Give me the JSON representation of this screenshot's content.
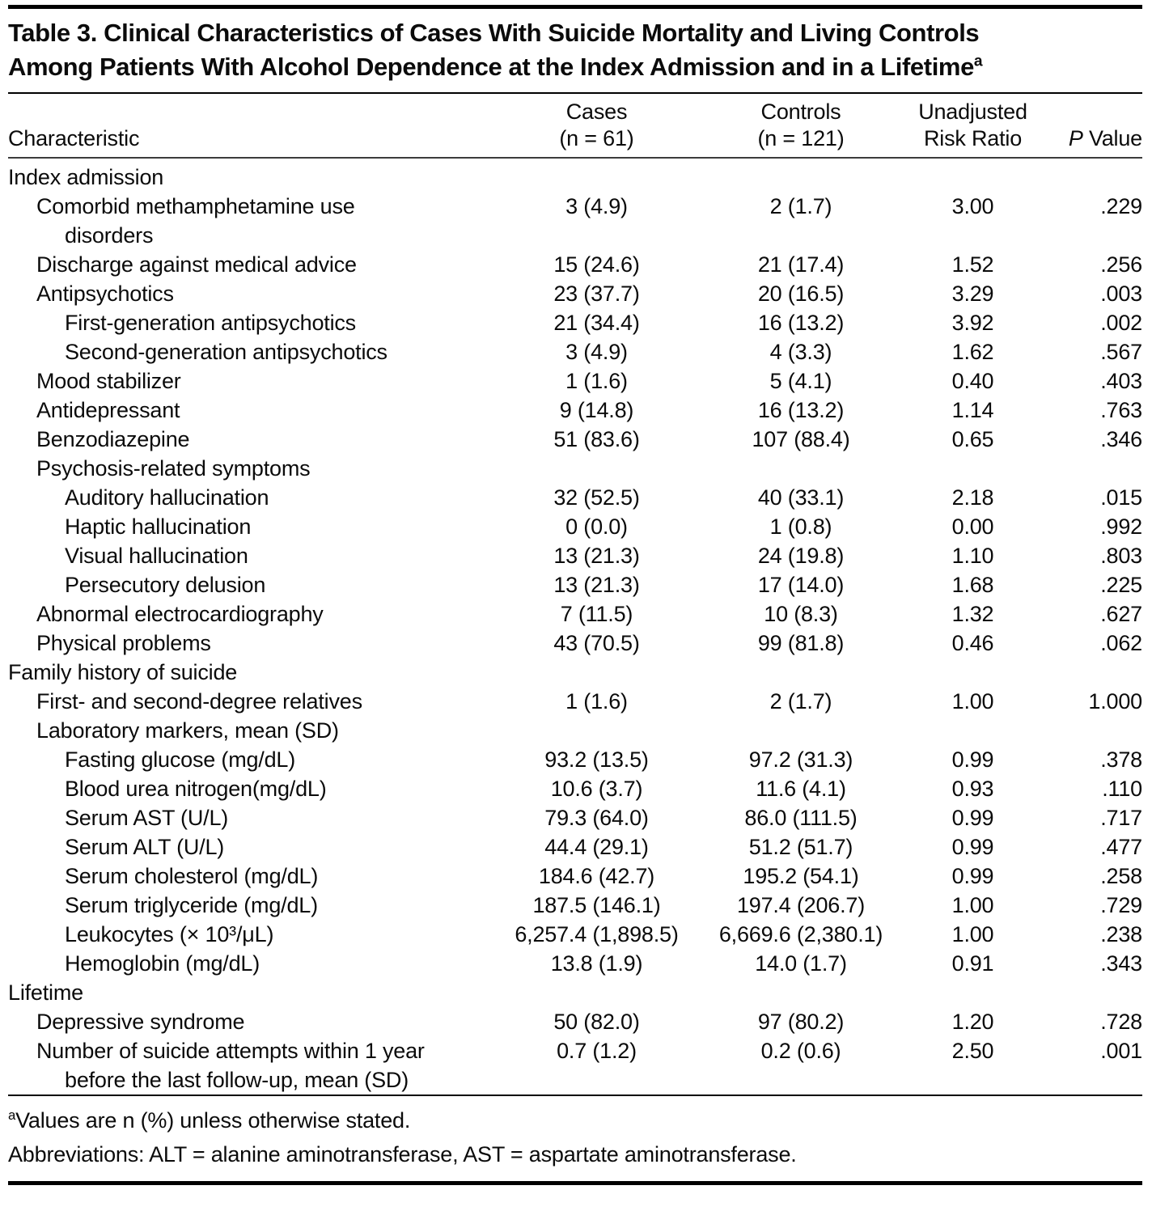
{
  "table": {
    "title": "Table 3. Clinical Characteristics of Cases With Suicide Mortality and Living Controls\nAmong Patients With Alcohol Dependence at the Index Admission and in a Lifetime",
    "title_sup": "a",
    "header": {
      "characteristic": "Characteristic",
      "cases_line1": "Cases",
      "cases_line2": "(n = 61)",
      "controls_line1": "Controls",
      "controls_line2": "(n = 121)",
      "risk_ratio_line1": "Unadjusted",
      "risk_ratio_line2": "Risk Ratio",
      "p_italic": "P",
      "p_word": "Value"
    },
    "rows": [
      {
        "label": "Index admission",
        "indent": 0,
        "cases": "",
        "controls": "",
        "rr": "",
        "p": ""
      },
      {
        "label": "Comorbid methamphetamine use\ndisorders",
        "indent": 1,
        "cases": "3 (4.9)",
        "controls": "2 (1.7)",
        "rr": "3.00",
        "p": ".229"
      },
      {
        "label": "Discharge against medical advice",
        "indent": 1,
        "cases": "15 (24.6)",
        "controls": "21 (17.4)",
        "rr": "1.52",
        "p": ".256"
      },
      {
        "label": "Antipsychotics",
        "indent": 1,
        "cases": "23 (37.7)",
        "controls": "20 (16.5)",
        "rr": "3.29",
        "p": ".003"
      },
      {
        "label": "First-generation antipsychotics",
        "indent": 2,
        "cases": "21 (34.4)",
        "controls": "16 (13.2)",
        "rr": "3.92",
        "p": ".002"
      },
      {
        "label": "Second-generation antipsychotics",
        "indent": 2,
        "cases": "3 (4.9)",
        "controls": "4 (3.3)",
        "rr": "1.62",
        "p": ".567"
      },
      {
        "label": "Mood stabilizer",
        "indent": 1,
        "cases": "1 (1.6)",
        "controls": "5 (4.1)",
        "rr": "0.40",
        "p": ".403"
      },
      {
        "label": "Antidepressant",
        "indent": 1,
        "cases": "9 (14.8)",
        "controls": "16 (13.2)",
        "rr": "1.14",
        "p": ".763"
      },
      {
        "label": "Benzodiazepine",
        "indent": 1,
        "cases": "51 (83.6)",
        "controls": "107 (88.4)",
        "rr": "0.65",
        "p": ".346"
      },
      {
        "label": "Psychosis-related symptoms",
        "indent": 1,
        "cases": "",
        "controls": "",
        "rr": "",
        "p": ""
      },
      {
        "label": "Auditory hallucination",
        "indent": 2,
        "cases": "32 (52.5)",
        "controls": "40 (33.1)",
        "rr": "2.18",
        "p": ".015"
      },
      {
        "label": "Haptic hallucination",
        "indent": 2,
        "cases": "0 (0.0)",
        "controls": "1 (0.8)",
        "rr": "0.00",
        "p": ".992"
      },
      {
        "label": "Visual hallucination",
        "indent": 2,
        "cases": "13 (21.3)",
        "controls": "24 (19.8)",
        "rr": "1.10",
        "p": ".803"
      },
      {
        "label": "Persecutory delusion",
        "indent": 2,
        "cases": "13 (21.3)",
        "controls": "17 (14.0)",
        "rr": "1.68",
        "p": ".225"
      },
      {
        "label": "Abnormal electrocardiography",
        "indent": 1,
        "cases": "7 (11.5)",
        "controls": "10 (8.3)",
        "rr": "1.32",
        "p": ".627"
      },
      {
        "label": "Physical problems",
        "indent": 1,
        "cases": "43 (70.5)",
        "controls": "99 (81.8)",
        "rr": "0.46",
        "p": ".062"
      },
      {
        "label": "Family history of suicide",
        "indent": 0,
        "cases": "",
        "controls": "",
        "rr": "",
        "p": ""
      },
      {
        "label": "First- and second-degree relatives",
        "indent": 1,
        "cases": "1 (1.6)",
        "controls": "2 (1.7)",
        "rr": "1.00",
        "p": "1.000"
      },
      {
        "label": "Laboratory markers, mean (SD)",
        "indent": 1,
        "cases": "",
        "controls": "",
        "rr": "",
        "p": ""
      },
      {
        "label": "Fasting glucose (mg/dL)",
        "indent": 2,
        "cases": "93.2 (13.5)",
        "controls": "97.2 (31.3)",
        "rr": "0.99",
        "p": ".378"
      },
      {
        "label": "Blood urea nitrogen(mg/dL)",
        "indent": 2,
        "cases": "10.6 (3.7)",
        "controls": "11.6 (4.1)",
        "rr": "0.93",
        "p": ".110"
      },
      {
        "label": "Serum AST (U/L)",
        "indent": 2,
        "cases": "79.3 (64.0)",
        "controls": "86.0 (111.5)",
        "rr": "0.99",
        "p": ".717"
      },
      {
        "label": "Serum ALT (U/L)",
        "indent": 2,
        "cases": "44.4 (29.1)",
        "controls": "51.2 (51.7)",
        "rr": "0.99",
        "p": ".477"
      },
      {
        "label": "Serum cholesterol (mg/dL)",
        "indent": 2,
        "cases": "184.6 (42.7)",
        "controls": "195.2 (54.1)",
        "rr": "0.99",
        "p": ".258"
      },
      {
        "label": "Serum triglyceride (mg/dL)",
        "indent": 2,
        "cases": "187.5 (146.1)",
        "controls": "197.4 (206.7)",
        "rr": "1.00",
        "p": ".729"
      },
      {
        "label": "Leukocytes (× 10³/μL)",
        "indent": 2,
        "cases": "6,257.4 (1,898.5)",
        "controls": "6,669.6 (2,380.1)",
        "rr": "1.00",
        "p": ".238"
      },
      {
        "label": "Hemoglobin (mg/dL)",
        "indent": 2,
        "cases": "13.8 (1.9)",
        "controls": "14.0 (1.7)",
        "rr": "0.91",
        "p": ".343"
      },
      {
        "label": "Lifetime",
        "indent": 0,
        "cases": "",
        "controls": "",
        "rr": "",
        "p": ""
      },
      {
        "label": "Depressive syndrome",
        "indent": 1,
        "cases": "50 (82.0)",
        "controls": "97 (80.2)",
        "rr": "1.20",
        "p": ".728"
      },
      {
        "label": "Number of suicide attempts within 1 year\nbefore the last follow-up, mean (SD)",
        "indent": 1,
        "cases": "0.7 (1.2)",
        "controls": "0.2 (0.6)",
        "rr": "2.50",
        "p": ".001"
      }
    ],
    "footnotes": {
      "a_sup": "a",
      "a_text": "Values are n (%) unless otherwise stated.",
      "abbreviations": "Abbreviations: ALT = alanine aminotransferase, AST = aspartate aminotransferase."
    }
  }
}
